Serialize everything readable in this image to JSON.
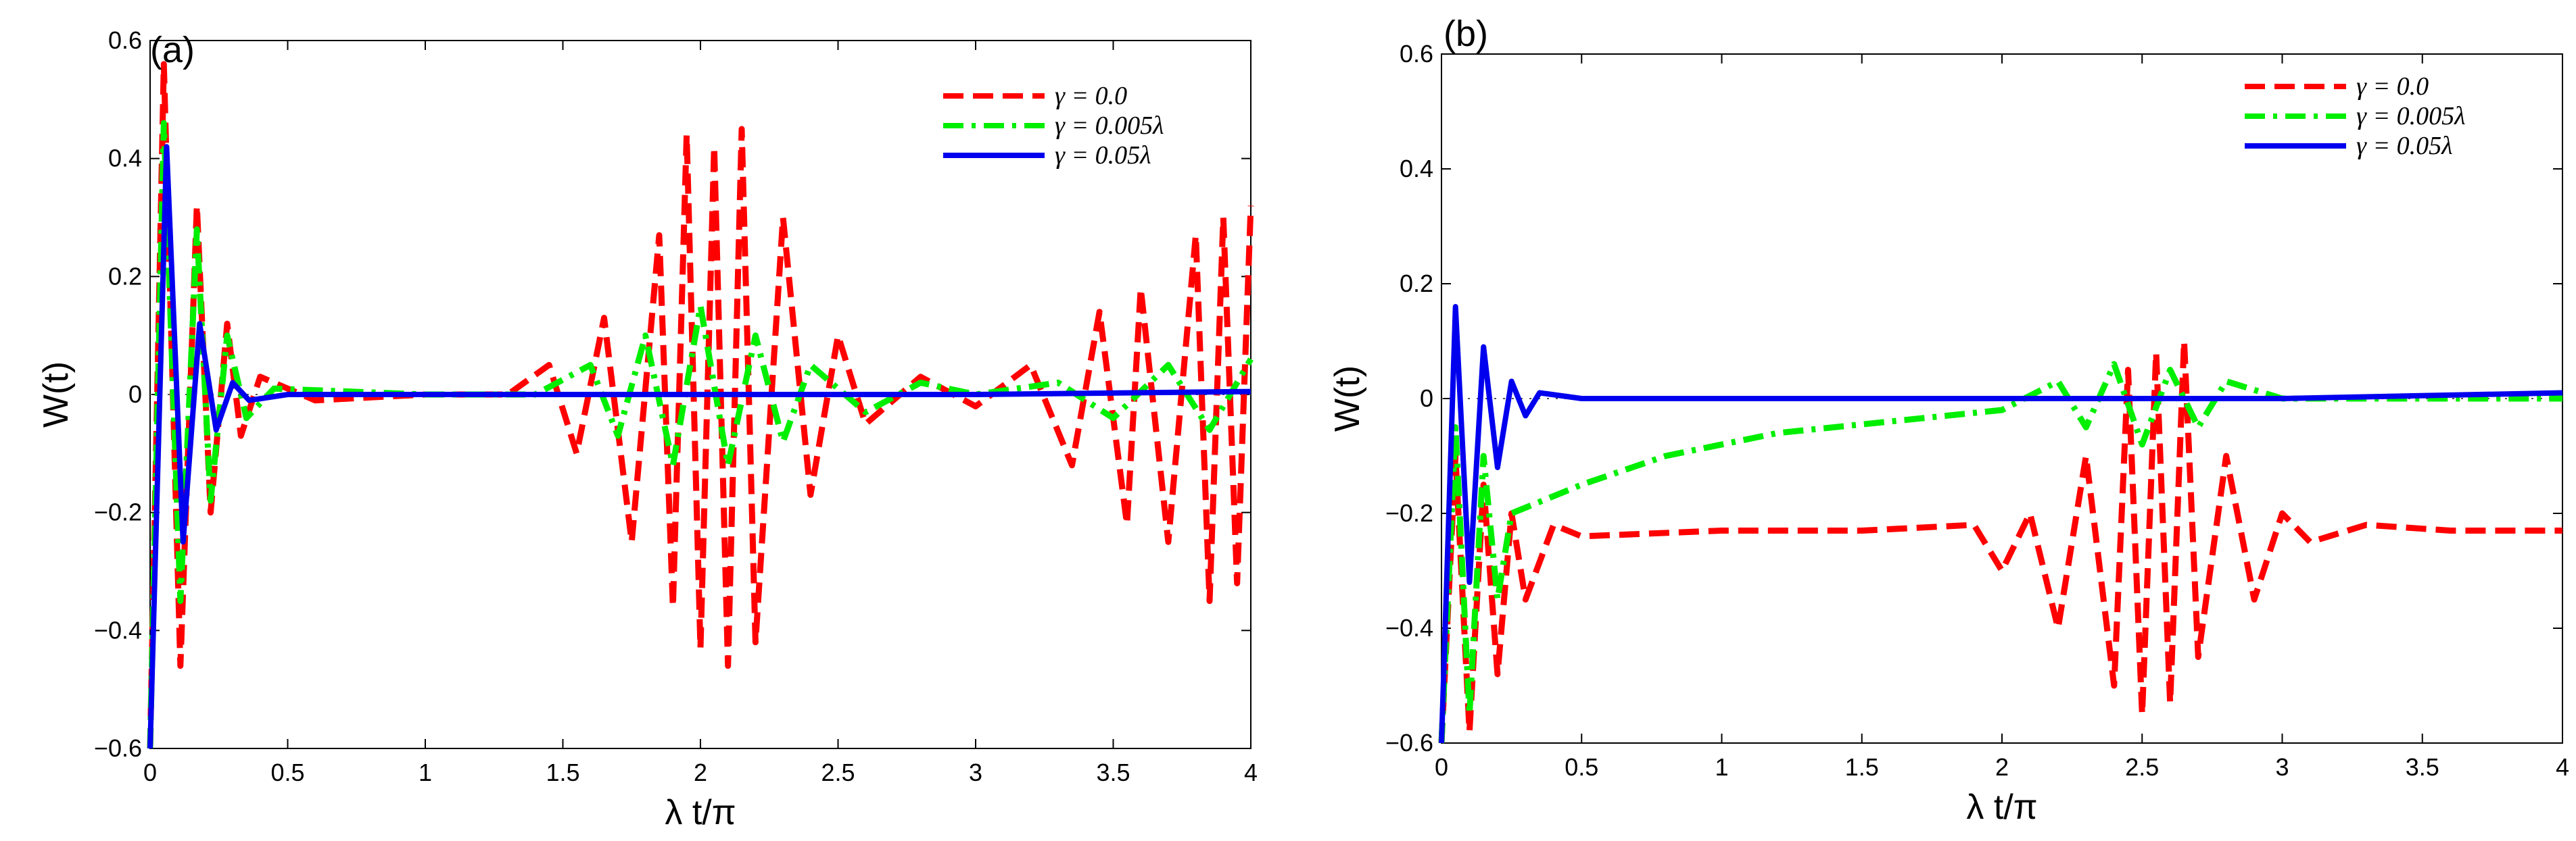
{
  "chart_data": [
    {
      "type": "line",
      "panel_label": "(a)",
      "xlabel": "λ t/π",
      "ylabel": "W(t)",
      "xlim": [
        0,
        4
      ],
      "ylim": [
        -0.6,
        0.6
      ],
      "xticks": [
        0,
        0.5,
        1,
        1.5,
        2,
        2.5,
        3,
        3.5,
        4
      ],
      "xtick_labels": [
        "0",
        "0.5",
        "1",
        "1.5",
        "2",
        "2.5",
        "3",
        "3.5",
        "4"
      ],
      "yticks": [
        -0.6,
        -0.4,
        -0.2,
        0,
        0.2,
        0.4,
        0.6
      ],
      "ytick_labels": [
        "−0.6",
        "−0.4",
        "−0.2",
        "0",
        "0.2",
        "0.4",
        "0.6"
      ],
      "legend_position": "top-right",
      "series": [
        {
          "name": "γ = 0.0",
          "color": "#ff0000",
          "style": "dashed",
          "points": [
            [
              0,
              -0.6
            ],
            [
              0.05,
              0.56
            ],
            [
              0.11,
              -0.46
            ],
            [
              0.17,
              0.32
            ],
            [
              0.22,
              -0.2
            ],
            [
              0.28,
              0.12
            ],
            [
              0.33,
              -0.07
            ],
            [
              0.4,
              0.03
            ],
            [
              0.6,
              -0.01
            ],
            [
              1.0,
              0.0
            ],
            [
              1.3,
              0.0
            ],
            [
              1.45,
              0.05
            ],
            [
              1.55,
              -0.1
            ],
            [
              1.65,
              0.13
            ],
            [
              1.75,
              -0.25
            ],
            [
              1.85,
              0.27
            ],
            [
              1.9,
              -0.36
            ],
            [
              1.95,
              0.44
            ],
            [
              2.0,
              -0.43
            ],
            [
              2.05,
              0.42
            ],
            [
              2.1,
              -0.46
            ],
            [
              2.15,
              0.45
            ],
            [
              2.2,
              -0.42
            ],
            [
              2.3,
              0.3
            ],
            [
              2.4,
              -0.17
            ],
            [
              2.5,
              0.1
            ],
            [
              2.6,
              -0.05
            ],
            [
              2.8,
              0.03
            ],
            [
              3.0,
              -0.02
            ],
            [
              3.2,
              0.05
            ],
            [
              3.35,
              -0.12
            ],
            [
              3.45,
              0.14
            ],
            [
              3.55,
              -0.22
            ],
            [
              3.6,
              0.18
            ],
            [
              3.7,
              -0.25
            ],
            [
              3.8,
              0.27
            ],
            [
              3.85,
              -0.35
            ],
            [
              3.9,
              0.3
            ],
            [
              3.95,
              -0.32
            ],
            [
              4.0,
              0.32
            ]
          ]
        },
        {
          "name": "γ = 0.005λ",
          "color": "#00ee00",
          "style": "dashdot",
          "points": [
            [
              0,
              -0.6
            ],
            [
              0.05,
              0.46
            ],
            [
              0.11,
              -0.35
            ],
            [
              0.17,
              0.28
            ],
            [
              0.22,
              -0.18
            ],
            [
              0.28,
              0.1
            ],
            [
              0.35,
              -0.04
            ],
            [
              0.45,
              0.01
            ],
            [
              1.0,
              0.0
            ],
            [
              1.4,
              0.0
            ],
            [
              1.6,
              0.05
            ],
            [
              1.7,
              -0.07
            ],
            [
              1.8,
              0.1
            ],
            [
              1.9,
              -0.12
            ],
            [
              2.0,
              0.15
            ],
            [
              2.1,
              -0.12
            ],
            [
              2.2,
              0.1
            ],
            [
              2.3,
              -0.08
            ],
            [
              2.4,
              0.05
            ],
            [
              2.6,
              -0.03
            ],
            [
              2.8,
              0.02
            ],
            [
              3.0,
              0.0
            ],
            [
              3.3,
              0.02
            ],
            [
              3.5,
              -0.04
            ],
            [
              3.7,
              0.05
            ],
            [
              3.85,
              -0.06
            ],
            [
              4.0,
              0.06
            ]
          ]
        },
        {
          "name": "γ = 0.05λ",
          "color": "#0000ee",
          "style": "solid",
          "points": [
            [
              0,
              -0.6
            ],
            [
              0.06,
              0.42
            ],
            [
              0.12,
              -0.25
            ],
            [
              0.18,
              0.12
            ],
            [
              0.24,
              -0.06
            ],
            [
              0.3,
              0.02
            ],
            [
              0.36,
              -0.01
            ],
            [
              0.5,
              0.0
            ],
            [
              1.0,
              0.0
            ],
            [
              2.0,
              0.0
            ],
            [
              3.0,
              0.0
            ],
            [
              4.0,
              0.005
            ]
          ]
        }
      ]
    },
    {
      "type": "line",
      "panel_label": "(b)",
      "xlabel": "λ t/π",
      "ylabel": "W(t)",
      "xlim": [
        0,
        4
      ],
      "ylim": [
        -0.6,
        0.6
      ],
      "xticks": [
        0,
        0.5,
        1,
        1.5,
        2,
        2.5,
        3,
        3.5,
        4
      ],
      "xtick_labels": [
        "0",
        "0.5",
        "1",
        "1.5",
        "2",
        "2.5",
        "3",
        "3.5",
        "4"
      ],
      "yticks": [
        -0.6,
        -0.4,
        -0.2,
        0,
        0.2,
        0.4,
        0.6
      ],
      "ytick_labels": [
        "−0.6",
        "−0.4",
        "−0.2",
        "0",
        "0.2",
        "0.4",
        "0.6"
      ],
      "legend_position": "top-right",
      "series": [
        {
          "name": "γ = 0.0",
          "color": "#ff0000",
          "style": "dashed",
          "points": [
            [
              0,
              -0.6
            ],
            [
              0.05,
              -0.1
            ],
            [
              0.1,
              -0.58
            ],
            [
              0.15,
              -0.15
            ],
            [
              0.2,
              -0.48
            ],
            [
              0.25,
              -0.2
            ],
            [
              0.3,
              -0.35
            ],
            [
              0.4,
              -0.22
            ],
            [
              0.5,
              -0.24
            ],
            [
              1.0,
              -0.23
            ],
            [
              1.5,
              -0.23
            ],
            [
              1.9,
              -0.22
            ],
            [
              2.0,
              -0.3
            ],
            [
              2.1,
              -0.2
            ],
            [
              2.2,
              -0.4
            ],
            [
              2.3,
              -0.1
            ],
            [
              2.4,
              -0.5
            ],
            [
              2.45,
              0.05
            ],
            [
              2.5,
              -0.55
            ],
            [
              2.55,
              0.08
            ],
            [
              2.6,
              -0.53
            ],
            [
              2.65,
              0.1
            ],
            [
              2.7,
              -0.45
            ],
            [
              2.8,
              -0.1
            ],
            [
              2.9,
              -0.35
            ],
            [
              3.0,
              -0.2
            ],
            [
              3.1,
              -0.25
            ],
            [
              3.3,
              -0.22
            ],
            [
              3.6,
              -0.23
            ],
            [
              4.0,
              -0.23
            ]
          ]
        },
        {
          "name": "γ = 0.005λ",
          "color": "#00ee00",
          "style": "dashdot",
          "points": [
            [
              0,
              -0.6
            ],
            [
              0.05,
              -0.05
            ],
            [
              0.1,
              -0.55
            ],
            [
              0.15,
              -0.1
            ],
            [
              0.2,
              -0.35
            ],
            [
              0.25,
              -0.2
            ],
            [
              0.35,
              -0.18
            ],
            [
              0.5,
              -0.15
            ],
            [
              0.8,
              -0.1
            ],
            [
              1.2,
              -0.06
            ],
            [
              1.6,
              -0.04
            ],
            [
              2.0,
              -0.02
            ],
            [
              2.2,
              0.03
            ],
            [
              2.3,
              -0.05
            ],
            [
              2.4,
              0.06
            ],
            [
              2.5,
              -0.08
            ],
            [
              2.6,
              0.05
            ],
            [
              2.7,
              -0.05
            ],
            [
              2.8,
              0.03
            ],
            [
              3.0,
              0.0
            ],
            [
              4.0,
              0.0
            ]
          ]
        },
        {
          "name": "γ = 0.05λ",
          "color": "#0000ee",
          "style": "solid",
          "points": [
            [
              0,
              -0.6
            ],
            [
              0.05,
              0.16
            ],
            [
              0.1,
              -0.32
            ],
            [
              0.15,
              0.09
            ],
            [
              0.2,
              -0.12
            ],
            [
              0.25,
              0.03
            ],
            [
              0.3,
              -0.03
            ],
            [
              0.35,
              0.01
            ],
            [
              0.5,
              0.0
            ],
            [
              1.0,
              0.0
            ],
            [
              2.0,
              0.0
            ],
            [
              3.0,
              0.0
            ],
            [
              4.0,
              0.01
            ]
          ]
        }
      ]
    }
  ]
}
